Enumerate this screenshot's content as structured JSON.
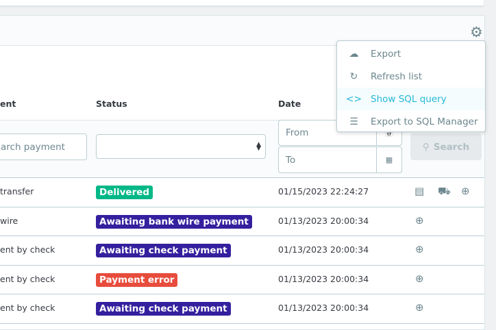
{
  "table": {
    "headers": {
      "payment": "ent",
      "status": "Status",
      "date": "Date"
    },
    "filters": {
      "payment_placeholder": "arch payment",
      "status_value": "",
      "date_from_placeholder": "From",
      "date_to_placeholder": "To",
      "search_label": "Search"
    },
    "rows": [
      {
        "payment": "transfer",
        "status": "Delivered",
        "status_color": "#00b887",
        "date": "01/15/2023 22:24:27",
        "actions": [
          "invoice-icon",
          "truck-icon",
          "zoom-icon"
        ]
      },
      {
        "payment": "wire",
        "status": "Awaiting bank wire payment",
        "status_color": "#34209e",
        "date": "01/13/2023 20:00:34",
        "actions": [
          "zoom-icon"
        ]
      },
      {
        "payment": "ent by check",
        "status": "Awaiting check payment",
        "status_color": "#34209e",
        "date": "01/13/2023 20:00:34",
        "actions": [
          "zoom-icon"
        ]
      },
      {
        "payment": "ent by check",
        "status": "Payment error",
        "status_color": "#e74c3c",
        "date": "01/13/2023 20:00:34",
        "actions": [
          "zoom-icon"
        ]
      },
      {
        "payment": "ent by check",
        "status": "Awaiting check payment",
        "status_color": "#34209e",
        "date": "01/13/2023 20:00:34",
        "actions": [
          "zoom-icon"
        ]
      }
    ]
  },
  "menu": {
    "items": [
      {
        "label": "Export",
        "icon": "cloud-download-icon"
      },
      {
        "label": "Refresh list",
        "icon": "refresh-icon"
      },
      {
        "label": "Show SQL query",
        "icon": "code-icon",
        "active": true
      },
      {
        "label": "Export to SQL Manager",
        "icon": "storage-icon"
      }
    ]
  },
  "colors": {
    "accent": "#25b9d7",
    "text": "#363a41",
    "muted": "#6c868e"
  }
}
